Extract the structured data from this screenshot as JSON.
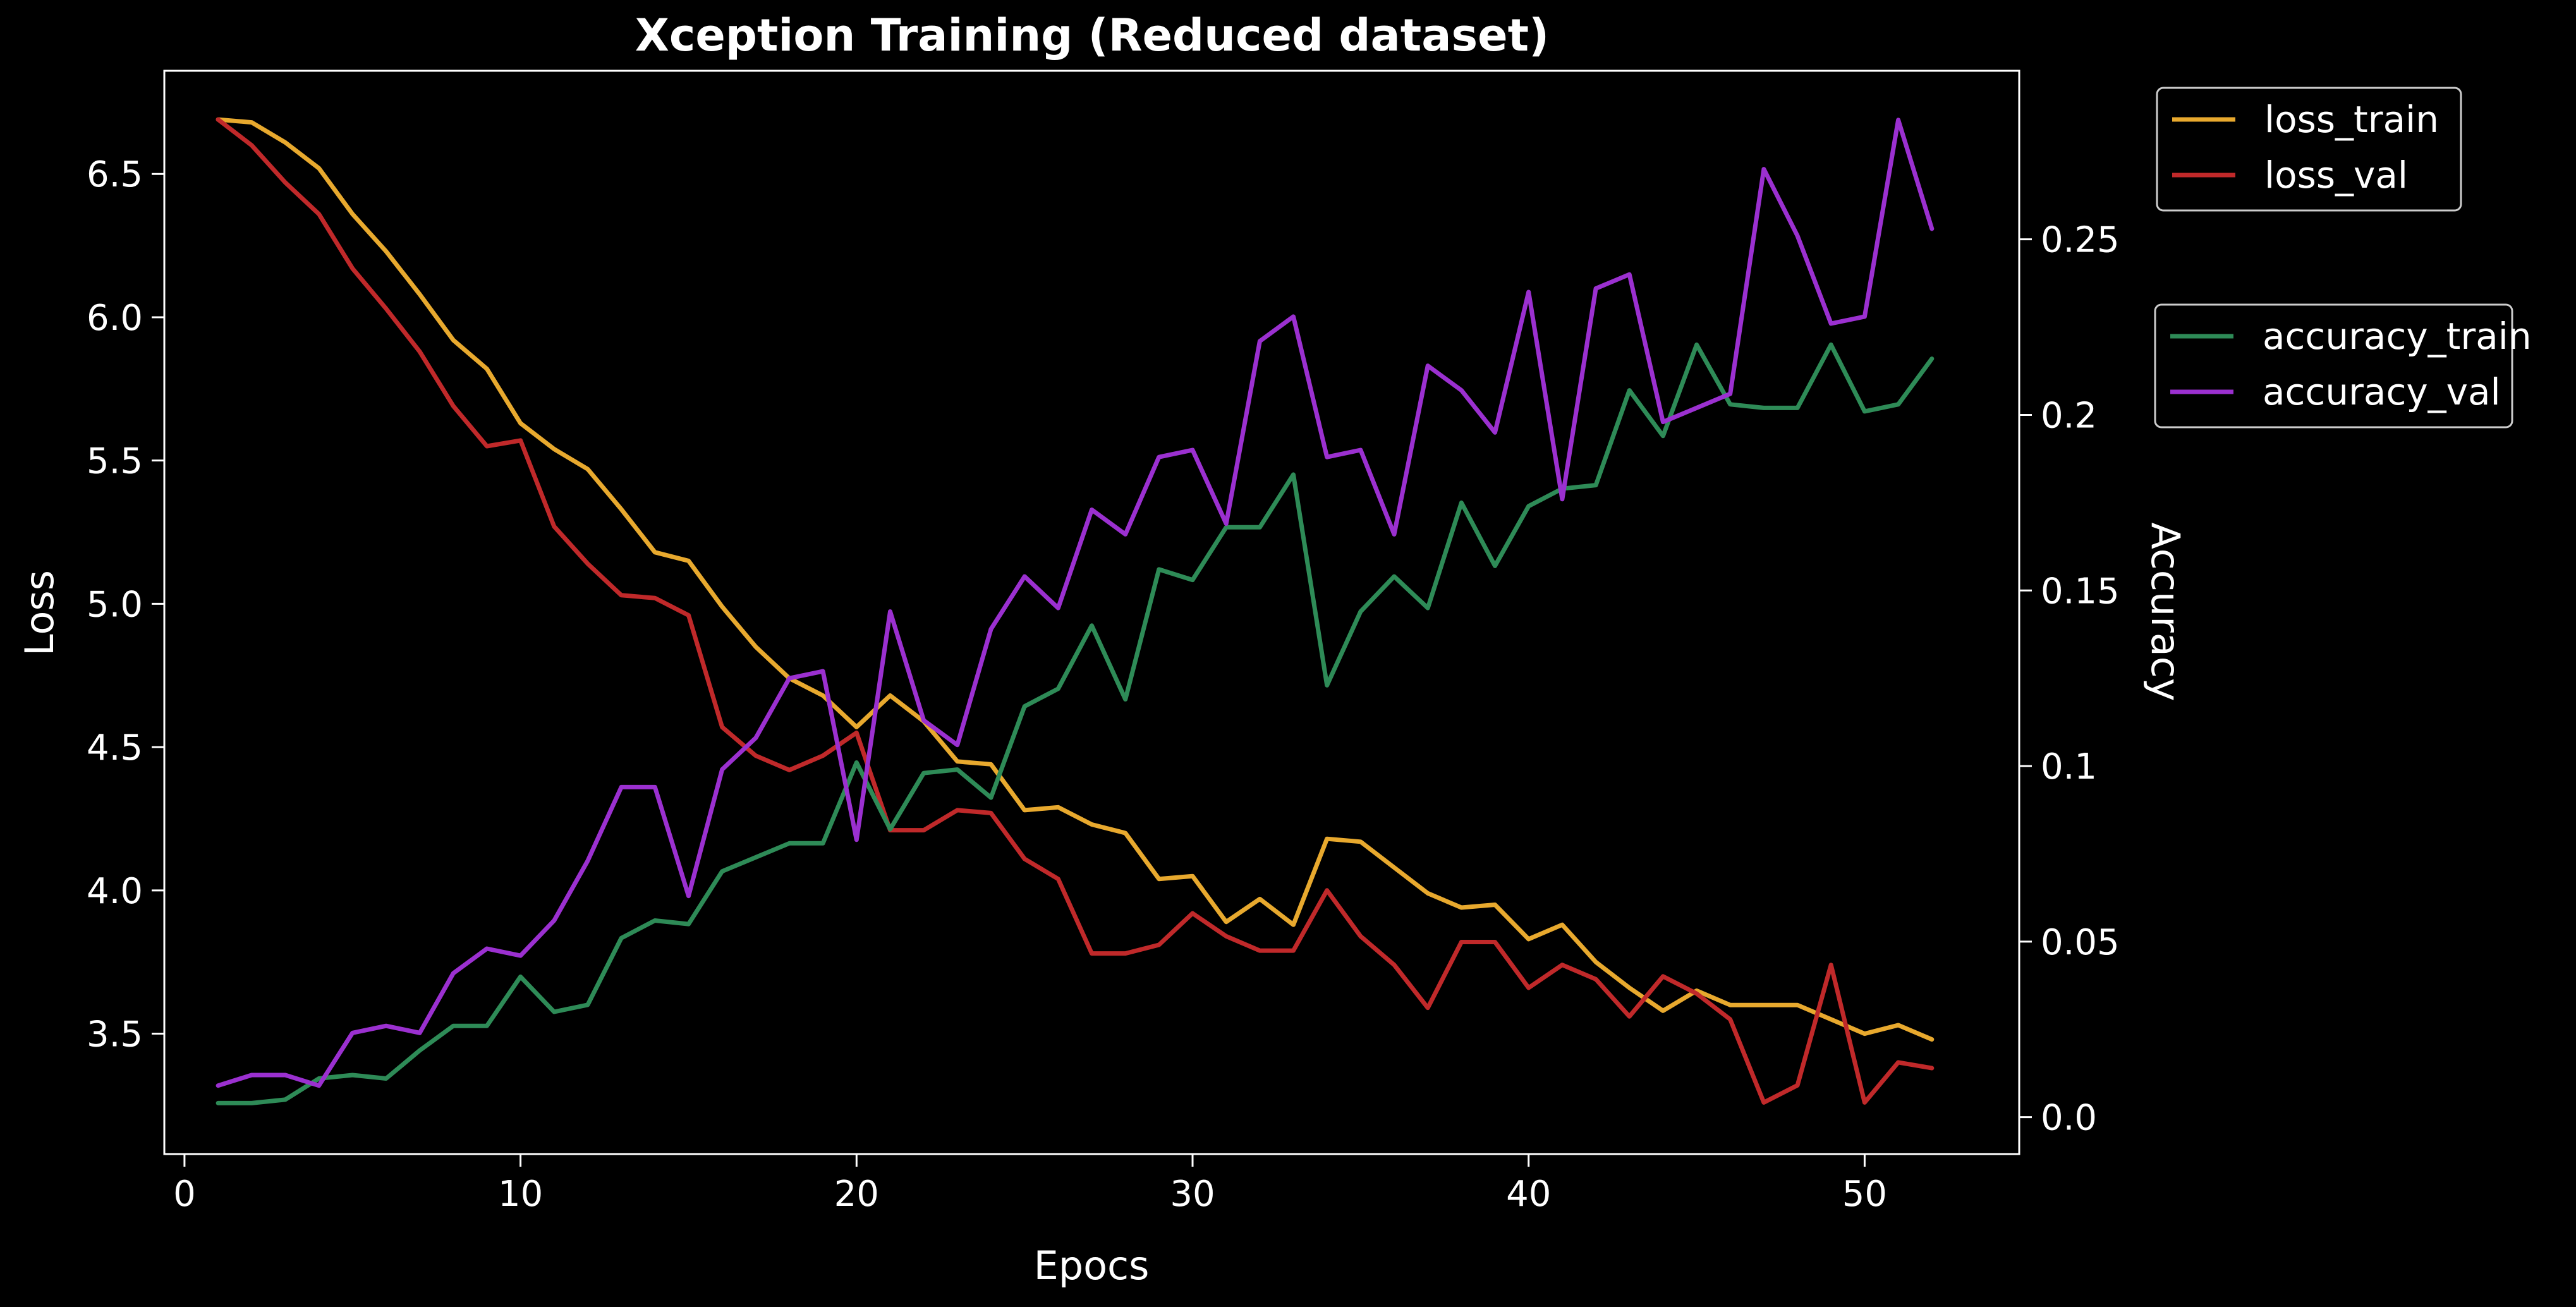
{
  "chart_data": {
    "type": "line",
    "title": "Xception Training (Reduced dataset)",
    "xlabel": "Epocs",
    "ylabel_left": "Loss",
    "ylabel_right": "Accuracy",
    "xlim": [
      -0.6,
      54.6
    ],
    "ylim_left": [
      3.08,
      6.86
    ],
    "ylim_right": [
      -0.0105,
      0.298
    ],
    "x_ticks": [
      0,
      10,
      20,
      30,
      40,
      50
    ],
    "y_ticks_left": [
      3.5,
      4.0,
      4.5,
      5.0,
      5.5,
      6.0,
      6.5
    ],
    "y_ticks_left_labels": [
      "3.5",
      "4.0",
      "4.5",
      "5.0",
      "5.5",
      "6.0",
      "6.5"
    ],
    "y_ticks_right": [
      0.0,
      0.05,
      0.1,
      0.15,
      0.2,
      0.25
    ],
    "y_ticks_right_labels": [
      "0.0",
      "0.05",
      "0.1",
      "0.15",
      "0.2",
      "0.25"
    ],
    "grid": false,
    "legend_loss_position": "outside-top-right",
    "legend_accuracy_position": "outside-right",
    "background": "#000000",
    "x": [
      1,
      2,
      3,
      4,
      5,
      6,
      7,
      8,
      9,
      10,
      11,
      12,
      13,
      14,
      15,
      16,
      17,
      18,
      19,
      20,
      21,
      22,
      23,
      24,
      25,
      26,
      27,
      28,
      29,
      30,
      31,
      32,
      33,
      34,
      35,
      36,
      37,
      38,
      39,
      40,
      41,
      42,
      43,
      44,
      45,
      46,
      47,
      48,
      49,
      50,
      51,
      52
    ],
    "series": [
      {
        "name": "loss_train",
        "axis": "left",
        "color": "#e8a92e",
        "values": [
          6.69,
          6.68,
          6.61,
          6.52,
          6.36,
          6.23,
          6.08,
          5.92,
          5.82,
          5.63,
          5.54,
          5.47,
          5.33,
          5.18,
          5.15,
          4.99,
          4.85,
          4.74,
          4.68,
          4.57,
          4.68,
          4.59,
          4.45,
          4.44,
          4.28,
          4.29,
          4.23,
          4.2,
          4.04,
          4.05,
          3.89,
          3.97,
          3.88,
          4.18,
          4.17,
          4.08,
          3.99,
          3.94,
          3.95,
          3.83,
          3.88,
          3.75,
          3.66,
          3.58,
          3.65,
          3.6,
          3.6,
          3.6,
          3.55,
          3.5,
          3.53,
          3.48
        ]
      },
      {
        "name": "loss_val",
        "axis": "left",
        "color": "#c0292a",
        "values": [
          6.69,
          6.6,
          6.47,
          6.36,
          6.17,
          6.03,
          5.88,
          5.69,
          5.55,
          5.57,
          5.27,
          5.14,
          5.03,
          5.02,
          4.96,
          4.57,
          4.47,
          4.42,
          4.47,
          4.55,
          4.21,
          4.21,
          4.28,
          4.27,
          4.11,
          4.04,
          3.78,
          3.78,
          3.81,
          3.92,
          3.84,
          3.79,
          3.79,
          4.0,
          3.84,
          3.74,
          3.59,
          3.82,
          3.82,
          3.66,
          3.74,
          3.69,
          3.56,
          3.7,
          3.64,
          3.55,
          3.26,
          3.32,
          3.74,
          3.26,
          3.4,
          3.38
        ]
      },
      {
        "name": "accuracy_train",
        "axis": "right",
        "color": "#2e8b57",
        "values": [
          0.004,
          0.004,
          0.005,
          0.011,
          0.012,
          0.011,
          0.019,
          0.026,
          0.026,
          0.04,
          0.03,
          0.032,
          0.051,
          0.056,
          0.055,
          0.07,
          0.074,
          0.078,
          0.078,
          0.101,
          0.082,
          0.098,
          0.099,
          0.091,
          0.117,
          0.122,
          0.14,
          0.119,
          0.156,
          0.153,
          0.168,
          0.168,
          0.183,
          0.123,
          0.144,
          0.154,
          0.145,
          0.175,
          0.157,
          0.174,
          0.179,
          0.18,
          0.207,
          0.194,
          0.22,
          0.203,
          0.202,
          0.202,
          0.22,
          0.201,
          0.203,
          0.216
        ]
      },
      {
        "name": "accuracy_val",
        "axis": "right",
        "color": "#9b30d0",
        "values": [
          0.009,
          0.012,
          0.012,
          0.009,
          0.024,
          0.026,
          0.024,
          0.041,
          0.048,
          0.046,
          0.056,
          0.073,
          0.094,
          0.094,
          0.063,
          0.099,
          0.108,
          0.125,
          0.127,
          0.079,
          0.144,
          0.113,
          0.106,
          0.139,
          0.154,
          0.145,
          0.173,
          0.166,
          0.188,
          0.19,
          0.169,
          0.221,
          0.228,
          0.188,
          0.19,
          0.166,
          0.214,
          0.207,
          0.195,
          0.235,
          0.176,
          0.236,
          0.24,
          0.198,
          0.202,
          0.206,
          0.27,
          0.251,
          0.226,
          0.228,
          0.284,
          0.253
        ]
      }
    ]
  }
}
